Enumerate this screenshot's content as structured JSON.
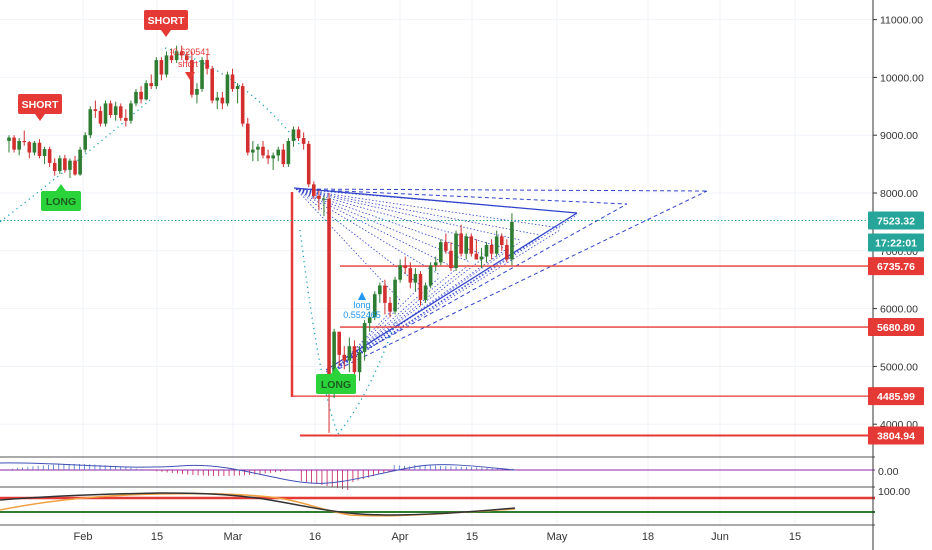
{
  "chart_data": {
    "type": "candlestick",
    "x_ticks": [
      "Feb",
      "15",
      "Mar",
      "16",
      "Apr",
      "15",
      "May",
      "18",
      "Jun",
      "15"
    ],
    "y_ticks": [
      "4000.00",
      "5000.00",
      "6000.00",
      "7000.00",
      "8000.00",
      "9000.00",
      "10000.00",
      "11000.00"
    ],
    "y_tick_values": [
      4000,
      5000,
      6000,
      7000,
      8000,
      9000,
      10000,
      11000
    ],
    "ylim": [
      3700,
      11400
    ],
    "price_tags": [
      {
        "label": "7523.32",
        "value": 7523.32,
        "bg": "#26a69a",
        "fg": "#ffffff"
      },
      {
        "label": "6735.76",
        "value": 6735.76,
        "bg": "#e53935",
        "fg": "#ffffff"
      },
      {
        "label": "5680.80",
        "value": 5680.8,
        "bg": "#e53935",
        "fg": "#ffffff"
      },
      {
        "label": "4485.99",
        "value": 4485.99,
        "bg": "#e53935",
        "fg": "#ffffff"
      },
      {
        "label": "3804.94",
        "value": 3804.94,
        "bg": "#e53935",
        "fg": "#ffffff"
      }
    ],
    "countdown": "17:22:01",
    "signals": [
      {
        "label": "SHORT",
        "kind": "short",
        "day": 15,
        "price": 10080
      },
      {
        "label": "SHORT",
        "kind": "short",
        "day": 45,
        "price": 11150
      },
      {
        "label": "LONG",
        "kind": "long",
        "day": 17,
        "price": 8180
      },
      {
        "label": "LONG",
        "kind": "long",
        "day": 104,
        "price": 4560
      }
    ],
    "annotations": [
      {
        "text": "-0.620541",
        "day": 49,
        "price": 10420,
        "color": "#e53935"
      },
      {
        "text": "short",
        "day": 49,
        "price": 10200,
        "color": "#e53935"
      },
      {
        "text": "long",
        "day": 111,
        "price": 5990,
        "color": "#2196f3"
      },
      {
        "text": "0.552465",
        "day": 111,
        "price": 5810,
        "color": "#2196f3"
      }
    ],
    "candles": [
      [
        1,
        8900,
        9000,
        8700,
        8960
      ],
      [
        2,
        8960,
        9000,
        8700,
        8750
      ],
      [
        3,
        8750,
        8950,
        8650,
        8900
      ],
      [
        4,
        8900,
        9080,
        8820,
        8880
      ],
      [
        5,
        8880,
        8900,
        8600,
        8700
      ],
      [
        6,
        8700,
        8900,
        8650,
        8870
      ],
      [
        7,
        8870,
        8930,
        8600,
        8640
      ],
      [
        8,
        8640,
        8800,
        8500,
        8760
      ],
      [
        9,
        8760,
        8800,
        8450,
        8520
      ],
      [
        10,
        8520,
        8600,
        8300,
        8380
      ],
      [
        11,
        8380,
        8650,
        8330,
        8600
      ],
      [
        12,
        8600,
        8660,
        8350,
        8400
      ],
      [
        13,
        8400,
        8600,
        8260,
        8560
      ],
      [
        14,
        8560,
        8640,
        8300,
        8320
      ],
      [
        15,
        8320,
        8800,
        8300,
        8750
      ],
      [
        16,
        8750,
        9050,
        8700,
        9000
      ],
      [
        17,
        9000,
        9500,
        8950,
        9450
      ],
      [
        18,
        9450,
        9600,
        9300,
        9420
      ],
      [
        19,
        9420,
        9500,
        9150,
        9200
      ],
      [
        20,
        9200,
        9600,
        9150,
        9550
      ],
      [
        21,
        9550,
        9600,
        9300,
        9350
      ],
      [
        22,
        9350,
        9580,
        9250,
        9500
      ],
      [
        23,
        9500,
        9550,
        9250,
        9300
      ],
      [
        24,
        9300,
        9450,
        9150,
        9250
      ],
      [
        25,
        9250,
        9600,
        9200,
        9550
      ],
      [
        26,
        9550,
        9800,
        9500,
        9750
      ],
      [
        27,
        9750,
        9850,
        9550,
        9620
      ],
      [
        28,
        9620,
        9950,
        9600,
        9900
      ],
      [
        29,
        9900,
        10050,
        9800,
        9850
      ],
      [
        30,
        9850,
        10350,
        9800,
        10300
      ],
      [
        31,
        10300,
        10350,
        9950,
        10050
      ],
      [
        32,
        10050,
        10450,
        10000,
        10380
      ],
      [
        33,
        10380,
        10500,
        10250,
        10300
      ],
      [
        34,
        10300,
        10550,
        10250,
        10450
      ],
      [
        35,
        10450,
        10550,
        10300,
        10380
      ],
      [
        36,
        10380,
        10450,
        10250,
        10300
      ],
      [
        37,
        10300,
        10450,
        9650,
        9700
      ],
      [
        38,
        9700,
        9900,
        9550,
        9800
      ],
      [
        39,
        9800,
        10350,
        9750,
        10300
      ],
      [
        40,
        10300,
        10400,
        10050,
        10150
      ],
      [
        41,
        10150,
        10200,
        9550,
        9600
      ],
      [
        42,
        9600,
        9750,
        9450,
        9650
      ],
      [
        43,
        9650,
        9750,
        9450,
        9550
      ],
      [
        44,
        9550,
        10100,
        9500,
        10050
      ],
      [
        45,
        10050,
        10150,
        9750,
        9800
      ],
      [
        46,
        9800,
        9900,
        9550,
        9850
      ],
      [
        47,
        9850,
        9900,
        9150,
        9200
      ],
      [
        48,
        9200,
        9300,
        8650,
        8700
      ],
      [
        49,
        8700,
        8900,
        8550,
        8750
      ],
      [
        50,
        8750,
        8850,
        8550,
        8800
      ],
      [
        51,
        8800,
        8900,
        8600,
        8650
      ],
      [
        52,
        8650,
        8750,
        8500,
        8600
      ],
      [
        53,
        8600,
        8700,
        8400,
        8650
      ],
      [
        54,
        8650,
        8800,
        8550,
        8750
      ],
      [
        55,
        8750,
        8850,
        8450,
        8500
      ],
      [
        56,
        8500,
        8950,
        8450,
        8900
      ],
      [
        57,
        8900,
        9150,
        8800,
        9100
      ],
      [
        58,
        9100,
        9150,
        8900,
        8950
      ],
      [
        59,
        8950,
        9050,
        8750,
        8850
      ],
      [
        60,
        8850,
        8900,
        8100,
        8150
      ],
      [
        61,
        8150,
        8200,
        7900,
        7950
      ],
      [
        62,
        7950,
        8050,
        7700,
        7900
      ],
      [
        63,
        7900,
        7950,
        7600,
        7900
      ],
      [
        64,
        7900,
        8000,
        3850,
        4800
      ],
      [
        65,
        4800,
        5650,
        4450,
        5600
      ],
      [
        66,
        5600,
        5600,
        5000,
        5200
      ],
      [
        67,
        5200,
        5350,
        4950,
        5100
      ],
      [
        68,
        5100,
        5500,
        4900,
        5350
      ],
      [
        69,
        5350,
        5450,
        4600,
        4900
      ],
      [
        70,
        4900,
        5350,
        4750,
        5250
      ],
      [
        71,
        5250,
        5800,
        5100,
        5750
      ],
      [
        72,
        5750,
        5950,
        5600,
        5850
      ],
      [
        73,
        5850,
        6300,
        5800,
        6250
      ],
      [
        74,
        6250,
        6450,
        6100,
        6400
      ],
      [
        75,
        6400,
        6500,
        5900,
        6100
      ],
      [
        76,
        6100,
        6200,
        5850,
        5950
      ],
      [
        77,
        5950,
        6550,
        5900,
        6500
      ],
      [
        78,
        6500,
        6850,
        6450,
        6750
      ],
      [
        79,
        6750,
        6900,
        6600,
        6700
      ],
      [
        80,
        6700,
        6800,
        6350,
        6450
      ],
      [
        81,
        6450,
        6700,
        6300,
        6600
      ],
      [
        82,
        6600,
        6650,
        6050,
        6150
      ],
      [
        83,
        6150,
        6450,
        6100,
        6400
      ],
      [
        84,
        6400,
        6800,
        6350,
        6750
      ],
      [
        85,
        6750,
        6900,
        6650,
        6800
      ],
      [
        86,
        6800,
        7200,
        6750,
        7150
      ],
      [
        87,
        7150,
        7300,
        6950,
        7000
      ],
      [
        88,
        7000,
        7150,
        6650,
        6700
      ],
      [
        89,
        6700,
        7350,
        6650,
        7300
      ],
      [
        90,
        7300,
        7450,
        6900,
        6950
      ],
      [
        91,
        6950,
        7300,
        6850,
        7250
      ],
      [
        92,
        7250,
        7300,
        6900,
        6950
      ],
      [
        93,
        6950,
        7200,
        6850,
        6850
      ],
      [
        94,
        6850,
        7050,
        6700,
        6900
      ],
      [
        95,
        6900,
        7150,
        6800,
        7100
      ],
      [
        96,
        7100,
        7200,
        6850,
        6950
      ],
      [
        97,
        6950,
        7350,
        6900,
        7250
      ],
      [
        98,
        7250,
        7300,
        7000,
        7100
      ],
      [
        99,
        7100,
        7200,
        6800,
        6850
      ],
      [
        100,
        6850,
        7650,
        6750,
        7500
      ]
    ],
    "macd_label": "0.00",
    "rsi_label": "100.00"
  }
}
